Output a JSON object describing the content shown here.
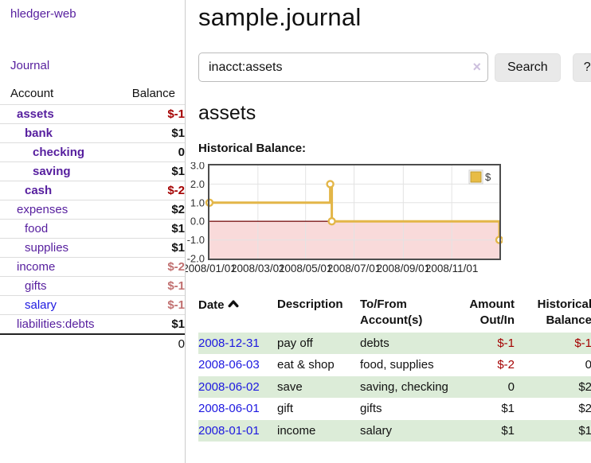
{
  "app": {
    "title": "hledger-web",
    "nav_journal": "Journal"
  },
  "sidebar": {
    "headers": {
      "account": "Account",
      "balance": "Balance"
    },
    "accounts": [
      {
        "name": "assets",
        "level": 1,
        "bold": true,
        "link_color": "purple",
        "balance": "$-1",
        "balance_style": "neg"
      },
      {
        "name": "bank",
        "level": 2,
        "bold": true,
        "link_color": "purple",
        "balance": "$1",
        "balance_style": "pos"
      },
      {
        "name": "checking",
        "level": 3,
        "bold": true,
        "link_color": "purple",
        "balance": "0",
        "balance_style": "pos"
      },
      {
        "name": "saving",
        "level": 3,
        "bold": true,
        "link_color": "purple",
        "balance": "$1",
        "balance_style": "pos"
      },
      {
        "name": "cash",
        "level": 2,
        "bold": true,
        "link_color": "purple",
        "balance": "$-2",
        "balance_style": "neg"
      },
      {
        "name": "expenses",
        "level": 1,
        "bold": false,
        "link_color": "purple",
        "balance": "$2",
        "balance_style": "pos"
      },
      {
        "name": "food",
        "level": 2,
        "bold": false,
        "link_color": "purple",
        "balance": "$1",
        "balance_style": "pos"
      },
      {
        "name": "supplies",
        "level": 2,
        "bold": false,
        "link_color": "purple",
        "balance": "$1",
        "balance_style": "pos"
      },
      {
        "name": "income",
        "level": 1,
        "bold": false,
        "link_color": "purple",
        "balance": "$-2",
        "balance_style": "faded"
      },
      {
        "name": "gifts",
        "level": 2,
        "bold": false,
        "link_color": "purple",
        "balance": "$-1",
        "balance_style": "faded"
      },
      {
        "name": "salary",
        "level": 2,
        "bold": false,
        "link_color": "blue",
        "balance": "$-1",
        "balance_style": "faded"
      },
      {
        "name": "liabilities:debts",
        "level": 1,
        "bold": false,
        "link_color": "purple",
        "balance": "$1",
        "balance_style": "pos"
      }
    ],
    "total": "0"
  },
  "main": {
    "title": "sample.journal",
    "search": {
      "value": "inacct:assets",
      "clear_icon": "×",
      "button_label": "Search",
      "help_label": "?"
    },
    "account_heading": "assets",
    "chart_label": "Historical Balance:"
  },
  "chart_data": {
    "type": "line",
    "title": "Historical Balance",
    "legend": {
      "label": "$",
      "position": "top-right"
    },
    "ylim": [
      -2,
      3
    ],
    "y_ticks": [
      "3.0",
      "2.0",
      "1.0",
      "0.0",
      "-1.0",
      "-2.0"
    ],
    "y_tick_values": [
      3,
      2,
      1,
      0,
      -1,
      -2
    ],
    "x_total_days": 365,
    "x_ticks": [
      {
        "day": 0,
        "label": "2008/01/01"
      },
      {
        "day": 61,
        "label": "2008/03/01"
      },
      {
        "day": 121,
        "label": "2008/05/01"
      },
      {
        "day": 182,
        "label": "2008/07/01"
      },
      {
        "day": 244,
        "label": "2008/09/01"
      },
      {
        "day": 305,
        "label": "2008/11/01"
      }
    ],
    "series": [
      {
        "name": "$",
        "step": "after",
        "points": [
          {
            "date": "2008-01-01",
            "day": 0,
            "value": 1
          },
          {
            "date": "2008-06-01",
            "day": 152,
            "value": 2
          },
          {
            "date": "2008-06-03",
            "day": 154,
            "value": 0
          },
          {
            "date": "2008-12-31",
            "day": 365,
            "value": -1
          }
        ],
        "line_color": "#e3b648",
        "marker": "open-circle"
      }
    ],
    "negative_region_fill": "#f9dada",
    "zero_line_color": "#7e1a1a",
    "grid_color": "#e3e3e3",
    "border_color": "#4d4d4d",
    "grid": true
  },
  "register_table": {
    "headers": {
      "date": "Date",
      "description": "Description",
      "accounts": "To/From Account(s)",
      "amount": "Amount Out/In",
      "balance": "Historical Balance"
    },
    "sort_icon": "caret-up",
    "rows": [
      {
        "date": "2008-12-31",
        "description": "pay off",
        "accounts": "debts",
        "amount": "$-1",
        "amount_neg": true,
        "balance": "$-1",
        "balance_neg": true,
        "stripe": true
      },
      {
        "date": "2008-06-03",
        "description": "eat & shop",
        "accounts": "food, supplies",
        "amount": "$-2",
        "amount_neg": true,
        "balance": "0",
        "balance_neg": false,
        "stripe": false
      },
      {
        "date": "2008-06-02",
        "description": "save",
        "accounts": "saving, checking",
        "amount": "0",
        "amount_neg": false,
        "balance": "$2",
        "balance_neg": false,
        "stripe": true
      },
      {
        "date": "2008-06-01",
        "description": "gift",
        "accounts": "gifts",
        "amount": "$1",
        "amount_neg": false,
        "balance": "$2",
        "balance_neg": false,
        "stripe": false
      },
      {
        "date": "2008-01-01",
        "description": "income",
        "accounts": "salary",
        "amount": "$1",
        "amount_neg": false,
        "balance": "$1",
        "balance_neg": false,
        "stripe": true
      }
    ]
  }
}
